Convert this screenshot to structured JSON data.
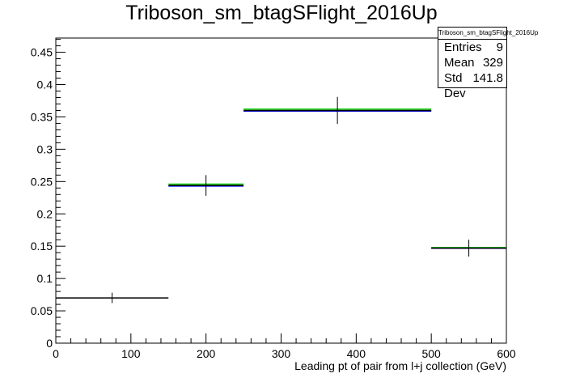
{
  "chart_data": {
    "type": "histogram",
    "title": "Triboson_sm_btagSFlight_2016Up",
    "xlabel": "Leading pt of pair from l+j collection (GeV)",
    "ylabel": "",
    "xlim": [
      0,
      600
    ],
    "ylim": [
      0,
      0.472
    ],
    "x_ticks": [
      0,
      100,
      200,
      300,
      400,
      500,
      600
    ],
    "y_ticks": [
      0,
      0.05,
      0.1,
      0.15,
      0.2,
      0.25,
      0.3,
      0.35,
      0.4,
      0.45
    ],
    "x_tick_labels": [
      "0",
      "100",
      "200",
      "300",
      "400",
      "500",
      "600"
    ],
    "y_tick_labels": [
      "0",
      "0.05",
      "0.1",
      "0.15",
      "0.2",
      "0.25",
      "0.3",
      "0.35",
      "0.4",
      "0.45"
    ],
    "bins": [
      {
        "x_low": 0,
        "x_high": 150,
        "x_center": 75,
        "value": 0.07,
        "error": 0.008
      },
      {
        "x_low": 150,
        "x_high": 250,
        "x_center": 200,
        "value": 0.244,
        "error": 0.016
      },
      {
        "x_low": 250,
        "x_high": 500,
        "x_center": 375,
        "value": 0.36,
        "error": 0.021
      },
      {
        "x_low": 500,
        "x_high": 600,
        "x_center": 550,
        "value": 0.147,
        "error": 0.013
      }
    ],
    "variations": [
      {
        "color": "#00cc00",
        "values": [
          null,
          0.246,
          0.362,
          0.148
        ]
      },
      {
        "color": "#0000ff",
        "values": [
          null,
          0.243,
          0.359,
          0.147
        ]
      }
    ],
    "nominal_color": "#000000",
    "grid": false,
    "legend": "none"
  },
  "stats_box": {
    "title": "Triboson_sm_btagSFlight_2016Up",
    "rows": [
      {
        "label": "Entries",
        "value": "9"
      },
      {
        "label": "Mean",
        "value": "329"
      },
      {
        "label": "Std Dev",
        "value": "141.8"
      }
    ]
  }
}
